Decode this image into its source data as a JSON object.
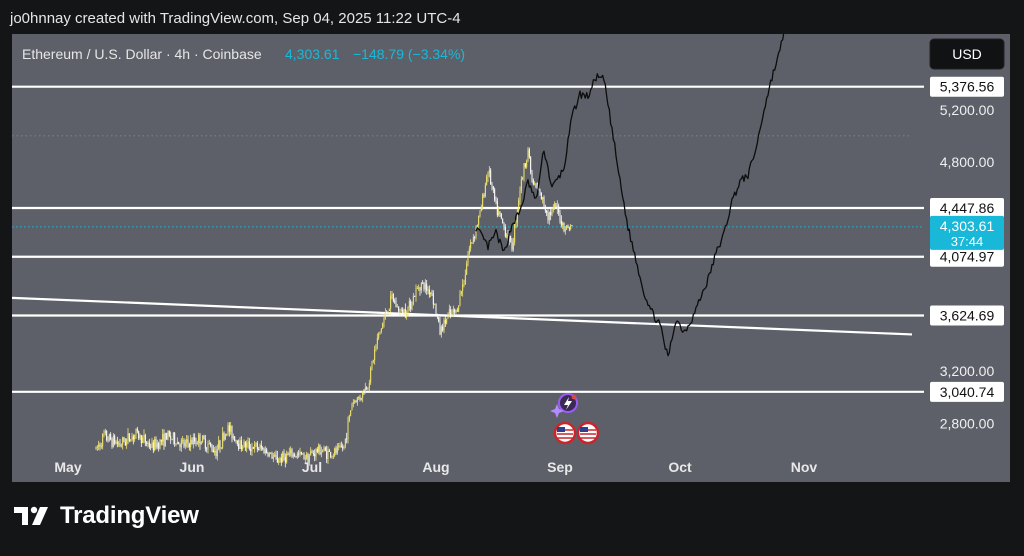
{
  "header": {
    "attribution": "jo0hnnay created with TradingView.com, Sep 04, 2025 11:22 UTC-4"
  },
  "legend": {
    "symbol_text": "Ethereum / U.S. Dollar · 4h · Coinbase",
    "price": "4,303.61",
    "change": "−148.79 (−3.34%)"
  },
  "currency_button": "USD",
  "footer": {
    "brand": "TradingView"
  },
  "colors": {
    "background": "#141517",
    "pane": "#5e6069",
    "candle_up": "#f2e66b",
    "candle_down": "#ffffff",
    "accent": "#1ab8d8",
    "projection": "#0d0d0d",
    "level_line": "#ffffff"
  },
  "icons": [
    "lightning-event-icon",
    "us-flag-icon",
    "us-flag-icon"
  ],
  "chart_data": {
    "type": "line",
    "symbol": "ETH/USD",
    "timeframe": "4h",
    "exchange": "Coinbase",
    "x_ticks": [
      "May",
      "Jun",
      "Jul",
      "Aug",
      "Sep",
      "Oct",
      "Nov"
    ],
    "x_tick_dates": [
      "2025-05-01",
      "2025-06-01",
      "2025-07-01",
      "2025-08-01",
      "2025-09-01",
      "2025-10-01",
      "2025-11-01"
    ],
    "y_ticks": [
      "2,800.00",
      "3,200.00",
      "4,800.00",
      "5,200.00"
    ],
    "y_tick_values": [
      2800,
      3200,
      4800,
      5200
    ],
    "ylim": [
      2580,
      5780
    ],
    "xlim": [
      "2025-04-17",
      "2025-11-28"
    ],
    "current_price": {
      "value": 4303.61,
      "label": "4,303.61",
      "countdown": "37:44"
    },
    "horizontal_levels": [
      {
        "value": 5376.56,
        "label": "5,376.56"
      },
      {
        "value": 4447.86,
        "label": "4,447.86"
      },
      {
        "value": 4074.97,
        "label": "4,074.97"
      },
      {
        "value": 3624.69,
        "label": "3,624.69"
      },
      {
        "value": 3040.74,
        "label": "3,040.74"
      }
    ],
    "trendline": {
      "from": [
        "2025-04-17",
        3760
      ],
      "to": [
        "2025-11-28",
        3480
      ]
    },
    "series": [
      {
        "kind": "price",
        "points": [
          [
            "2025-05-08",
            2600
          ],
          [
            "2025-05-10",
            2700
          ],
          [
            "2025-05-14",
            2640
          ],
          [
            "2025-05-18",
            2720
          ],
          [
            "2025-05-22",
            2620
          ],
          [
            "2025-05-26",
            2700
          ],
          [
            "2025-05-30",
            2630
          ],
          [
            "2025-06-03",
            2680
          ],
          [
            "2025-06-07",
            2590
          ],
          [
            "2025-06-10",
            2760
          ],
          [
            "2025-06-13",
            2640
          ],
          [
            "2025-06-16",
            2620
          ],
          [
            "2025-06-19",
            2600
          ],
          [
            "2025-06-22",
            2520
          ],
          [
            "2025-06-26",
            2560
          ],
          [
            "2025-06-30",
            2550
          ],
          [
            "2025-07-03",
            2600
          ],
          [
            "2025-07-06",
            2560
          ],
          [
            "2025-07-09",
            2620
          ],
          [
            "2025-07-11",
            2960
          ],
          [
            "2025-07-13",
            3000
          ],
          [
            "2025-07-15",
            3100
          ],
          [
            "2025-07-17",
            3400
          ],
          [
            "2025-07-19",
            3600
          ],
          [
            "2025-07-21",
            3760
          ],
          [
            "2025-07-23",
            3650
          ],
          [
            "2025-07-25",
            3680
          ],
          [
            "2025-07-28",
            3870
          ],
          [
            "2025-07-31",
            3800
          ],
          [
            "2025-08-02",
            3500
          ],
          [
            "2025-08-04",
            3620
          ],
          [
            "2025-08-06",
            3650
          ],
          [
            "2025-08-08",
            3900
          ],
          [
            "2025-08-09",
            4100
          ],
          [
            "2025-08-11",
            4300
          ],
          [
            "2025-08-12",
            4400
          ],
          [
            "2025-08-14",
            4750
          ],
          [
            "2025-08-16",
            4450
          ],
          [
            "2025-08-18",
            4300
          ],
          [
            "2025-08-20",
            4150
          ],
          [
            "2025-08-22",
            4600
          ],
          [
            "2025-08-24",
            4900
          ],
          [
            "2025-08-25",
            4650
          ],
          [
            "2025-08-27",
            4550
          ],
          [
            "2025-08-29",
            4400
          ],
          [
            "2025-08-31",
            4450
          ],
          [
            "2025-09-02",
            4300
          ],
          [
            "2025-09-04",
            4303.61
          ]
        ]
      },
      {
        "kind": "projection",
        "points": [
          [
            "2025-08-11",
            4300
          ],
          [
            "2025-08-14",
            4150
          ],
          [
            "2025-08-16",
            4260
          ],
          [
            "2025-08-18",
            4100
          ],
          [
            "2025-08-20",
            4320
          ],
          [
            "2025-08-22",
            4420
          ],
          [
            "2025-08-24",
            4650
          ],
          [
            "2025-08-26",
            4500
          ],
          [
            "2025-08-28",
            4900
          ],
          [
            "2025-08-30",
            4600
          ],
          [
            "2025-09-02",
            4750
          ],
          [
            "2025-09-04",
            5150
          ],
          [
            "2025-09-06",
            5320
          ],
          [
            "2025-09-08",
            5300
          ],
          [
            "2025-09-10",
            5450
          ],
          [
            "2025-09-12",
            5430
          ],
          [
            "2025-09-14",
            5050
          ],
          [
            "2025-09-16",
            4650
          ],
          [
            "2025-09-18",
            4300
          ],
          [
            "2025-09-20",
            4050
          ],
          [
            "2025-09-22",
            3800
          ],
          [
            "2025-09-24",
            3650
          ],
          [
            "2025-09-26",
            3550
          ],
          [
            "2025-09-28",
            3300
          ],
          [
            "2025-09-30",
            3600
          ],
          [
            "2025-10-02",
            3500
          ],
          [
            "2025-10-04",
            3600
          ],
          [
            "2025-10-06",
            3750
          ],
          [
            "2025-10-08",
            3900
          ],
          [
            "2025-10-10",
            4100
          ],
          [
            "2025-10-12",
            4250
          ],
          [
            "2025-10-14",
            4500
          ],
          [
            "2025-10-16",
            4650
          ],
          [
            "2025-10-18",
            4700
          ],
          [
            "2025-10-20",
            4900
          ],
          [
            "2025-10-22",
            5200
          ],
          [
            "2025-10-24",
            5450
          ],
          [
            "2025-10-26",
            5650
          ],
          [
            "2025-10-27",
            5800
          ]
        ]
      }
    ]
  }
}
